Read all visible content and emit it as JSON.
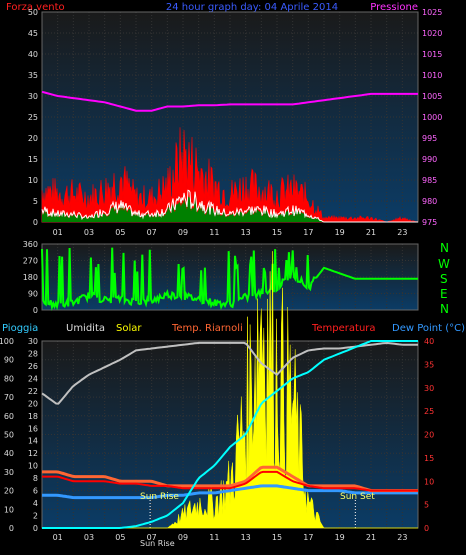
{
  "header": {
    "left_label": "Forza vento",
    "title": "24 hour graph day: 04 Aprile 2014",
    "right_label": "Pressione"
  },
  "wind_dir_labels": [
    "N",
    "W",
    "S",
    "E",
    "N"
  ],
  "legend": {
    "rain": "Pioggia",
    "humidity": "Umidita",
    "solar": "Solar",
    "heat": "Temp. Riarnoli",
    "temperature": "Temperatura",
    "dew": "Dew Point (°C)"
  },
  "annotations": {
    "sunrise": "Sun Rise",
    "sunset": "Sun Set",
    "bottom_left": "Sun Rise"
  },
  "colors": {
    "wind_gust": "#ff0000",
    "wind_avg": "#ffffff",
    "wind_green": "#008000",
    "pressure": "#ff00ff",
    "direction": "#00ff00",
    "humidity": "#c0c0c0",
    "solar": "#ffff00",
    "heat": "#ff6633",
    "temperature": "#ff0000",
    "dew": "#3399ff",
    "rain": "#00ffff"
  },
  "chart_data": [
    {
      "type": "line",
      "name": "wind-pressure",
      "x_ticks": [
        "01",
        "03",
        "05",
        "07",
        "09",
        "11",
        "13",
        "15",
        "17",
        "19",
        "21",
        "23"
      ],
      "y_left_ticks": [
        "0",
        "5",
        "10",
        "15",
        "20",
        "25",
        "30",
        "35",
        "40",
        "45",
        "50"
      ],
      "y_left_range": [
        0,
        50
      ],
      "y_right_ticks": [
        "975",
        "980",
        "985",
        "990",
        "995",
        "1000",
        "1005",
        "1010",
        "1015",
        "1020",
        "1025"
      ],
      "y_right_range": [
        975,
        1025
      ],
      "series": [
        {
          "hours": [
            0,
            1,
            2,
            3,
            4,
            5,
            6,
            7,
            8,
            9,
            10,
            11,
            12,
            13,
            14,
            15,
            16,
            17,
            18,
            19,
            20,
            21,
            22,
            23,
            24
          ],
          "values": [
            1006,
            1005,
            1004.5,
            1004,
            1003.5,
            1002.5,
            1001.5,
            1001.5,
            1002.5,
            1002.5,
            1002.8,
            1002.8,
            1003,
            1003,
            1003,
            1003,
            1003,
            1003.5,
            1004,
            1004.5,
            1005,
            1005.5,
            1005.5,
            1005.5,
            1005.5
          ]
        },
        {
          "hours": [
            0,
            1,
            2,
            3,
            4,
            5,
            6,
            7,
            8,
            9,
            10,
            11,
            12,
            13,
            14,
            15,
            16,
            17,
            18,
            19,
            20,
            21,
            22,
            23,
            24
          ],
          "values": [
            8,
            7,
            7,
            6,
            8,
            11,
            6,
            6,
            9,
            17,
            13,
            9,
            7,
            9,
            8,
            7,
            8,
            6,
            1,
            1,
            1,
            1,
            0,
            1,
            0
          ]
        },
        {
          "hours": [
            0,
            1,
            2,
            3,
            4,
            5,
            6,
            7,
            8,
            9,
            10,
            11,
            12,
            13,
            14,
            15,
            16,
            17,
            18,
            19,
            20,
            21,
            22,
            23,
            24
          ],
          "values": [
            3,
            2,
            2,
            1,
            3,
            4,
            2,
            2,
            3,
            6,
            5,
            3,
            2,
            3,
            3,
            2,
            3,
            2,
            0,
            0,
            0,
            0,
            0,
            0,
            0
          ]
        }
      ]
    },
    {
      "type": "line",
      "name": "wind-direction",
      "y_ticks": [
        "0",
        "90",
        "180",
        "270",
        "360"
      ],
      "y_range": [
        0,
        360
      ],
      "series": [
        {
          "hours": [
            0,
            1,
            2,
            3,
            4,
            5,
            6,
            7,
            8,
            9,
            10,
            11,
            12,
            13,
            14,
            15,
            16,
            17,
            18,
            19,
            20,
            21,
            22,
            23,
            24
          ],
          "values": [
            45,
            30,
            40,
            80,
            55,
            60,
            45,
            50,
            85,
            75,
            60,
            40,
            30,
            70,
            90,
            120,
            200,
            120,
            230,
            200,
            170,
            170,
            170,
            170,
            170
          ]
        }
      ]
    },
    {
      "type": "line",
      "name": "meteo",
      "y_left_ticks": [
        "0",
        "10",
        "20",
        "30",
        "40",
        "50",
        "60",
        "70",
        "80",
        "90",
        "100"
      ],
      "y_left_range": [
        0,
        100
      ],
      "y_mid_ticks": [
        "0",
        "2",
        "4",
        "6",
        "8",
        "10",
        "12",
        "14",
        "16",
        "18",
        "20",
        "22",
        "24",
        "26",
        "28",
        "30"
      ],
      "y_mid_range": [
        0,
        30
      ],
      "y_right_ticks": [
        "0",
        "5",
        "10",
        "15",
        "20",
        "25",
        "30",
        "35",
        "40"
      ],
      "y_right_range": [
        0,
        40
      ],
      "series": [
        {
          "hours": [
            0,
            1,
            2,
            3,
            4,
            5,
            6,
            7,
            8,
            9,
            10,
            11,
            12,
            13,
            14,
            15,
            16,
            17,
            18,
            19,
            20,
            21,
            22,
            23,
            24
          ],
          "values": [
            72,
            66,
            76,
            82,
            86,
            90,
            95,
            96,
            97,
            98,
            99,
            99,
            99,
            99,
            88,
            82,
            91,
            95,
            96,
            96,
            97,
            98,
            99,
            98,
            98
          ]
        },
        {
          "hours": [
            0,
            1,
            2,
            3,
            4,
            5,
            6,
            7,
            8,
            9,
            10,
            11,
            12,
            13,
            14,
            15,
            16,
            17,
            18,
            19,
            20,
            21,
            22,
            23,
            24
          ],
          "values": [
            0,
            0,
            0,
            0,
            0,
            0,
            0,
            0,
            0,
            2,
            4,
            4,
            7,
            18,
            35,
            25,
            20,
            4,
            0,
            0,
            0,
            0,
            0,
            0,
            0
          ]
        },
        {
          "hours": [
            0,
            1,
            2,
            3,
            4,
            5,
            6,
            7,
            8,
            9,
            10,
            11,
            12,
            13,
            14,
            15,
            16,
            17,
            18,
            19,
            20,
            21,
            22,
            23,
            24
          ],
          "values": [
            12,
            12,
            11,
            11,
            11,
            10,
            10,
            10,
            9,
            9,
            9,
            9,
            9,
            10,
            13,
            13,
            11,
            9,
            9,
            9,
            9,
            8,
            8,
            8,
            8
          ]
        },
        {
          "hours": [
            0,
            1,
            2,
            3,
            4,
            5,
            6,
            7,
            8,
            9,
            10,
            11,
            12,
            13,
            14,
            15,
            16,
            17,
            18,
            19,
            20,
            21,
            22,
            23,
            24
          ],
          "values": [
            11,
            11,
            10,
            10,
            10,
            9.5,
            9.5,
            9,
            9,
            8.5,
            8.5,
            8.5,
            8.5,
            9.5,
            12,
            12,
            10,
            9,
            8.5,
            8.5,
            8.5,
            8,
            8,
            8,
            8
          ]
        },
        {
          "hours": [
            0,
            1,
            2,
            3,
            4,
            5,
            6,
            7,
            8,
            9,
            10,
            11,
            12,
            13,
            14,
            15,
            16,
            17,
            18,
            19,
            20,
            21,
            22,
            23,
            24
          ],
          "values": [
            7,
            7,
            6.5,
            6.5,
            6.5,
            6.5,
            6.5,
            6.5,
            7,
            7,
            7.5,
            7.5,
            8,
            8.5,
            9,
            9,
            8.5,
            8,
            8,
            8,
            7.5,
            7.5,
            7.5,
            7.5,
            7.5
          ]
        },
        {
          "hours": [
            0,
            1,
            2,
            3,
            4,
            5,
            6,
            7,
            8,
            9,
            10,
            11,
            12,
            13,
            14,
            15,
            16,
            17,
            18,
            19,
            20,
            21,
            22,
            23,
            24
          ],
          "values": [
            0,
            0,
            0,
            0,
            0,
            0,
            0.3,
            1,
            2,
            4,
            8,
            10,
            13,
            15,
            20,
            22,
            24,
            25,
            27,
            28,
            29,
            30,
            30,
            30,
            30
          ]
        }
      ]
    }
  ]
}
